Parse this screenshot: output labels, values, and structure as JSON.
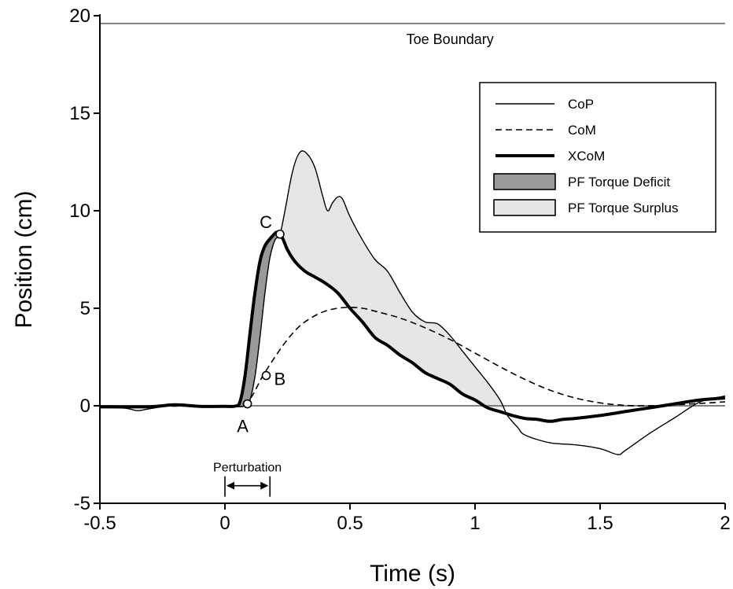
{
  "chart_data": {
    "type": "line",
    "xlabel": "Time (s)",
    "ylabel": "Position (cm)",
    "xlim": [
      -0.5,
      2
    ],
    "ylim": [
      -5,
      20
    ],
    "x_ticks": [
      "-0.5",
      "0",
      "0.5",
      "1",
      "1.5",
      "2"
    ],
    "y_ticks": [
      "-5",
      "0",
      "5",
      "10",
      "15",
      "20"
    ],
    "grid": false,
    "legend_position": "top-right",
    "colors": {
      "deficit": "#999999",
      "surplus": "#e6e6e6",
      "line": "#000000",
      "reference": "#808080"
    },
    "reference_lines": [
      {
        "label": "Toe Boundary",
        "y": 19.6
      },
      {
        "label": "",
        "y": 0
      }
    ],
    "series": [
      {
        "name": "CoP",
        "style": "thin",
        "points": [
          [
            -0.5,
            -0.1
          ],
          [
            -0.4,
            -0.12
          ],
          [
            -0.35,
            -0.25
          ],
          [
            -0.3,
            -0.15
          ],
          [
            -0.2,
            0.03
          ],
          [
            -0.1,
            -0.05
          ],
          [
            0,
            -0.02
          ],
          [
            0.05,
            -0.05
          ],
          [
            0.08,
            0.0
          ],
          [
            0.1,
            0.3
          ],
          [
            0.12,
            1.5
          ],
          [
            0.14,
            3.5
          ],
          [
            0.16,
            5.8
          ],
          [
            0.18,
            7.6
          ],
          [
            0.2,
            8.5
          ],
          [
            0.22,
            8.8
          ],
          [
            0.24,
            10.0
          ],
          [
            0.27,
            12.0
          ],
          [
            0.3,
            13.0
          ],
          [
            0.33,
            12.9
          ],
          [
            0.36,
            12.2
          ],
          [
            0.39,
            10.8
          ],
          [
            0.41,
            10.0
          ],
          [
            0.43,
            10.4
          ],
          [
            0.45,
            10.7
          ],
          [
            0.47,
            10.6
          ],
          [
            0.5,
            9.7
          ],
          [
            0.55,
            8.5
          ],
          [
            0.6,
            7.5
          ],
          [
            0.65,
            6.9
          ],
          [
            0.7,
            5.8
          ],
          [
            0.75,
            4.8
          ],
          [
            0.8,
            4.3
          ],
          [
            0.85,
            4.2
          ],
          [
            0.9,
            3.6
          ],
          [
            0.95,
            2.8
          ],
          [
            1.0,
            2.0
          ],
          [
            1.05,
            1.2
          ],
          [
            1.1,
            0.3
          ],
          [
            1.13,
            -0.5
          ],
          [
            1.17,
            -1.1
          ],
          [
            1.2,
            -1.5
          ],
          [
            1.3,
            -1.9
          ],
          [
            1.4,
            -2.0
          ],
          [
            1.5,
            -2.2
          ],
          [
            1.57,
            -2.5
          ],
          [
            1.6,
            -2.3
          ],
          [
            1.7,
            -1.4
          ],
          [
            1.8,
            -0.6
          ],
          [
            1.9,
            0.2
          ],
          [
            2.0,
            0.5
          ]
        ]
      },
      {
        "name": "CoM",
        "style": "dashed",
        "points": [
          [
            -0.5,
            -0.02
          ],
          [
            -0.25,
            -0.02
          ],
          [
            0,
            0
          ],
          [
            0.05,
            0.02
          ],
          [
            0.1,
            0.35
          ],
          [
            0.15,
            1.5
          ],
          [
            0.2,
            2.5
          ],
          [
            0.25,
            3.4
          ],
          [
            0.3,
            4.1
          ],
          [
            0.35,
            4.55
          ],
          [
            0.4,
            4.85
          ],
          [
            0.45,
            5.0
          ],
          [
            0.5,
            5.05
          ],
          [
            0.55,
            5.0
          ],
          [
            0.6,
            4.85
          ],
          [
            0.7,
            4.5
          ],
          [
            0.8,
            4.0
          ],
          [
            0.9,
            3.4
          ],
          [
            1.0,
            2.7
          ],
          [
            1.1,
            2.0
          ],
          [
            1.2,
            1.35
          ],
          [
            1.3,
            0.8
          ],
          [
            1.4,
            0.4
          ],
          [
            1.5,
            0.15
          ],
          [
            1.6,
            0.02
          ],
          [
            1.7,
            0.0
          ],
          [
            1.8,
            0.05
          ],
          [
            1.9,
            0.12
          ],
          [
            2.0,
            0.2
          ]
        ]
      },
      {
        "name": "XCoM",
        "style": "thick",
        "points": [
          [
            -0.5,
            -0.05
          ],
          [
            -0.3,
            -0.05
          ],
          [
            -0.2,
            0.05
          ],
          [
            -0.1,
            -0.03
          ],
          [
            0,
            -0.03
          ],
          [
            0.04,
            -0.02
          ],
          [
            0.06,
            0.2
          ],
          [
            0.08,
            1.5
          ],
          [
            0.1,
            3.7
          ],
          [
            0.12,
            5.8
          ],
          [
            0.14,
            7.4
          ],
          [
            0.16,
            8.2
          ],
          [
            0.19,
            8.7
          ],
          [
            0.21,
            8.9
          ],
          [
            0.23,
            8.6
          ],
          [
            0.25,
            8.0
          ],
          [
            0.28,
            7.4
          ],
          [
            0.32,
            6.9
          ],
          [
            0.36,
            6.6
          ],
          [
            0.4,
            6.3
          ],
          [
            0.45,
            5.8
          ],
          [
            0.5,
            5.0
          ],
          [
            0.55,
            4.3
          ],
          [
            0.6,
            3.5
          ],
          [
            0.65,
            3.1
          ],
          [
            0.7,
            2.6
          ],
          [
            0.75,
            2.2
          ],
          [
            0.8,
            1.7
          ],
          [
            0.85,
            1.4
          ],
          [
            0.9,
            1.1
          ],
          [
            0.95,
            0.6
          ],
          [
            1.0,
            0.3
          ],
          [
            1.05,
            -0.1
          ],
          [
            1.1,
            -0.3
          ],
          [
            1.15,
            -0.5
          ],
          [
            1.2,
            -0.65
          ],
          [
            1.25,
            -0.7
          ],
          [
            1.3,
            -0.8
          ],
          [
            1.35,
            -0.7
          ],
          [
            1.4,
            -0.65
          ],
          [
            1.5,
            -0.5
          ],
          [
            1.6,
            -0.3
          ],
          [
            1.7,
            -0.1
          ],
          [
            1.8,
            0.1
          ],
          [
            1.9,
            0.3
          ],
          [
            2.0,
            0.4
          ]
        ]
      }
    ],
    "regions": [
      {
        "name": "PF Torque Deficit",
        "upper": [
          [
            0.06,
            0.2
          ],
          [
            0.08,
            1.5
          ],
          [
            0.1,
            3.7
          ],
          [
            0.12,
            5.8
          ],
          [
            0.14,
            7.4
          ],
          [
            0.16,
            8.2
          ],
          [
            0.19,
            8.7
          ],
          [
            0.21,
            8.9
          ]
        ],
        "lower": [
          [
            0.06,
            0.0
          ],
          [
            0.08,
            0.0
          ],
          [
            0.1,
            0.3
          ],
          [
            0.12,
            1.5
          ],
          [
            0.14,
            3.5
          ],
          [
            0.16,
            5.8
          ],
          [
            0.18,
            7.6
          ],
          [
            0.2,
            8.5
          ],
          [
            0.21,
            8.9
          ]
        ]
      },
      {
        "name": "PF Torque Surplus",
        "upper": [
          [
            0.22,
            8.8
          ],
          [
            0.24,
            10.0
          ],
          [
            0.27,
            12.0
          ],
          [
            0.3,
            13.0
          ],
          [
            0.33,
            12.9
          ],
          [
            0.36,
            12.2
          ],
          [
            0.39,
            10.8
          ],
          [
            0.41,
            10.0
          ],
          [
            0.43,
            10.4
          ],
          [
            0.45,
            10.7
          ],
          [
            0.47,
            10.6
          ],
          [
            0.5,
            9.7
          ],
          [
            0.55,
            8.5
          ],
          [
            0.6,
            7.5
          ],
          [
            0.65,
            6.9
          ],
          [
            0.7,
            5.8
          ],
          [
            0.75,
            4.8
          ],
          [
            0.8,
            4.3
          ],
          [
            0.85,
            4.2
          ],
          [
            0.9,
            3.6
          ],
          [
            0.95,
            2.8
          ],
          [
            1.0,
            2.0
          ],
          [
            1.05,
            1.2
          ],
          [
            1.1,
            0.3
          ],
          [
            1.12,
            -0.1
          ]
        ],
        "lower": [
          [
            0.22,
            8.8
          ],
          [
            0.25,
            8.0
          ],
          [
            0.28,
            7.4
          ],
          [
            0.32,
            6.9
          ],
          [
            0.36,
            6.6
          ],
          [
            0.4,
            6.3
          ],
          [
            0.45,
            5.8
          ],
          [
            0.5,
            5.0
          ],
          [
            0.55,
            4.3
          ],
          [
            0.6,
            3.5
          ],
          [
            0.65,
            3.1
          ],
          [
            0.7,
            2.6
          ],
          [
            0.75,
            2.2
          ],
          [
            0.8,
            1.7
          ],
          [
            0.85,
            1.4
          ],
          [
            0.9,
            1.1
          ],
          [
            0.95,
            0.6
          ],
          [
            1.0,
            0.3
          ],
          [
            1.05,
            -0.1
          ],
          [
            1.12,
            -0.1
          ]
        ]
      }
    ],
    "point_markers": [
      {
        "label": "A",
        "x": 0.09,
        "y": 0.1
      },
      {
        "label": "B",
        "x": 0.165,
        "y": 1.55
      },
      {
        "label": "C",
        "x": 0.22,
        "y": 8.8
      }
    ],
    "perturbation": {
      "label": "Perturbation",
      "start": 0,
      "end": 0.18
    }
  }
}
